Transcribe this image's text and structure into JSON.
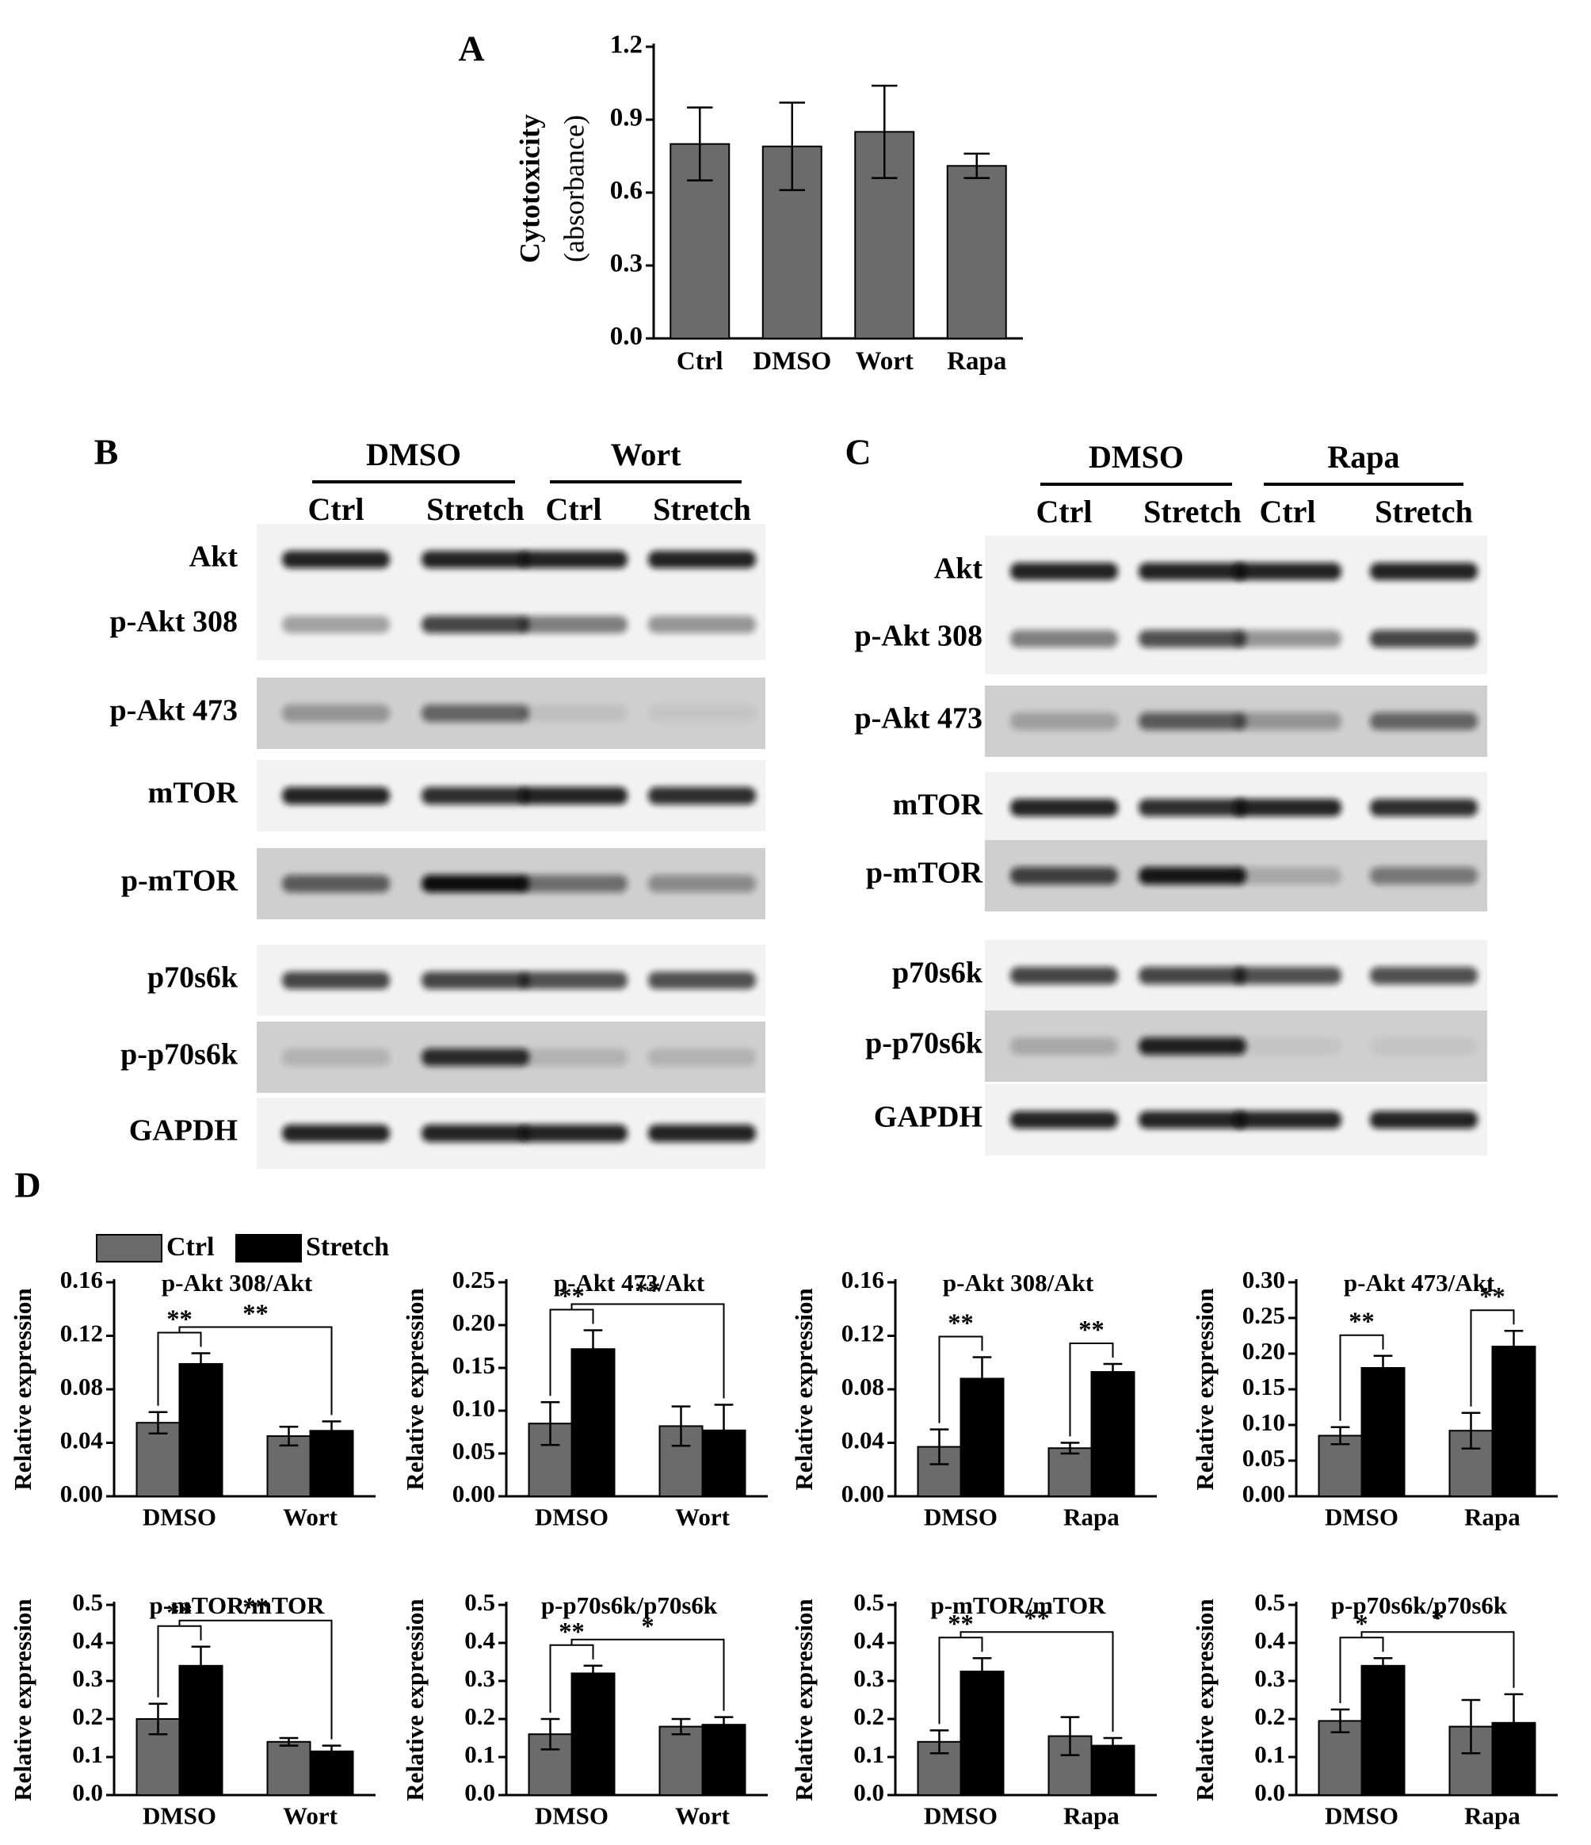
{
  "chart_data": [
    {
      "type": "bar",
      "panel_label": "A",
      "ylabel": [
        "Cytotoxicity",
        "(absorbance)"
      ],
      "categories": [
        "Ctrl",
        "DMSO",
        "Wort",
        "Rapa"
      ],
      "values": [
        0.8,
        0.79,
        0.85,
        0.71
      ],
      "errors": [
        0.15,
        0.18,
        0.19,
        0.05
      ],
      "color": "#6b6b6b",
      "ylim": [
        0,
        1.2
      ],
      "yticks": [
        {
          "value": 0,
          "label": "0.0"
        },
        0.3,
        0.6,
        0.9,
        1.2
      ]
    },
    {
      "type": "bar",
      "panel_label": "D",
      "title": "p-Akt 308/Akt",
      "ylabel": "Relative expression",
      "categories": [
        "DMSO",
        "Wort"
      ],
      "series": [
        {
          "name": "Ctrl",
          "color": "#6b6b6b",
          "values": [
            0.055,
            0.045
          ],
          "errors": [
            0.008,
            0.007
          ]
        },
        {
          "name": "Stretch",
          "color": "#000000",
          "values": [
            0.099,
            0.049
          ],
          "errors": [
            0.008,
            0.007
          ]
        }
      ],
      "ylim": [
        0,
        0.16
      ],
      "yticks": [
        {
          "value": 0,
          "label": "0.00"
        },
        0.04,
        0.08,
        0.12,
        0.16
      ],
      "within": [
        "**",
        null
      ],
      "between": "**"
    },
    {
      "type": "bar",
      "title": "p-Akt 473/Akt",
      "ylabel": "Relative expression",
      "categories": [
        "DMSO",
        "Wort"
      ],
      "series": [
        {
          "color": "#6b6b6b",
          "values": [
            0.085,
            0.082
          ],
          "errors": [
            0.025,
            0.023
          ]
        },
        {
          "color": "#000000",
          "values": [
            0.172,
            0.077
          ],
          "errors": [
            0.022,
            0.03
          ]
        }
      ],
      "ylim": [
        0,
        0.25
      ],
      "yticks": [
        {
          "value": 0,
          "label": "0.00"
        },
        0.05,
        {
          "value": 0.1,
          "label": "0.10"
        },
        0.15,
        {
          "value": 0.2,
          "label": "0.20"
        },
        0.25
      ],
      "within": [
        "**",
        null
      ],
      "between": "**"
    },
    {
      "type": "bar",
      "title": "p-Akt 308/Akt",
      "ylabel": "Relative expression",
      "categories": [
        "DMSO",
        "Rapa"
      ],
      "series": [
        {
          "color": "#6b6b6b",
          "values": [
            0.037,
            0.036
          ],
          "errors": [
            0.013,
            0.004
          ]
        },
        {
          "color": "#000000",
          "values": [
            0.088,
            0.093
          ],
          "errors": [
            0.016,
            0.006
          ]
        }
      ],
      "ylim": [
        0,
        0.16
      ],
      "yticks": [
        {
          "value": 0,
          "label": "0.00"
        },
        0.04,
        0.08,
        0.12,
        0.16
      ],
      "within": [
        "**",
        "**"
      ]
    },
    {
      "type": "bar",
      "title": "p-Akt 473/Akt",
      "ylabel": "Relative expression",
      "categories": [
        "DMSO",
        "Rapa"
      ],
      "series": [
        {
          "color": "#6b6b6b",
          "values": [
            0.085,
            0.092
          ],
          "errors": [
            0.012,
            0.025
          ]
        },
        {
          "color": "#000000",
          "values": [
            0.18,
            0.21
          ],
          "errors": [
            0.017,
            0.022
          ]
        }
      ],
      "ylim": [
        0,
        0.3
      ],
      "yticks": [
        {
          "value": 0,
          "label": "0.00"
        },
        0.05,
        {
          "value": 0.1,
          "label": "0.10"
        },
        0.15,
        {
          "value": 0.2,
          "label": "0.20"
        },
        0.25,
        {
          "value": 0.3,
          "label": "0.30"
        }
      ],
      "within": [
        "**",
        "**"
      ]
    },
    {
      "type": "bar",
      "title": "p-mTOR/mTOR",
      "ylabel": "Relative expression",
      "categories": [
        "DMSO",
        "Wort"
      ],
      "series": [
        {
          "color": "#6b6b6b",
          "values": [
            0.2,
            0.14
          ],
          "errors": [
            0.04,
            0.01
          ]
        },
        {
          "color": "#000000",
          "values": [
            0.34,
            0.115
          ],
          "errors": [
            0.05,
            0.015
          ]
        }
      ],
      "ylim": [
        0,
        0.5
      ],
      "yticks": [
        {
          "value": 0,
          "label": "0.0"
        },
        0.1,
        0.2,
        0.3,
        0.4,
        0.5
      ],
      "within": [
        "**",
        null
      ],
      "between": "**"
    },
    {
      "type": "bar",
      "title": "p-p70s6k/p70s6k",
      "ylabel": "Relative expression",
      "categories": [
        "DMSO",
        "Wort"
      ],
      "series": [
        {
          "color": "#6b6b6b",
          "values": [
            0.16,
            0.18
          ],
          "errors": [
            0.04,
            0.02
          ]
        },
        {
          "color": "#000000",
          "values": [
            0.32,
            0.185
          ],
          "errors": [
            0.02,
            0.02
          ]
        }
      ],
      "ylim": [
        0,
        0.5
      ],
      "yticks": [
        {
          "value": 0,
          "label": "0.0"
        },
        0.1,
        0.2,
        0.3,
        0.4,
        0.5
      ],
      "within": [
        "**",
        null
      ],
      "between": "*"
    },
    {
      "type": "bar",
      "title": "p-mTOR/mTOR",
      "ylabel": "Relative expression",
      "categories": [
        "DMSO",
        "Rapa"
      ],
      "series": [
        {
          "color": "#6b6b6b",
          "values": [
            0.14,
            0.155
          ],
          "errors": [
            0.03,
            0.05
          ]
        },
        {
          "color": "#000000",
          "values": [
            0.325,
            0.13
          ],
          "errors": [
            0.035,
            0.02
          ]
        }
      ],
      "ylim": [
        0,
        0.5
      ],
      "yticks": [
        {
          "value": 0,
          "label": "0.0"
        },
        0.1,
        0.2,
        0.3,
        0.4,
        0.5
      ],
      "within": [
        "**",
        null
      ],
      "between": "**"
    },
    {
      "type": "bar",
      "title": "p-p70s6k/p70s6k",
      "ylabel": "Relative expression",
      "categories": [
        "DMSO",
        "Rapa"
      ],
      "series": [
        {
          "color": "#6b6b6b",
          "values": [
            0.195,
            0.18
          ],
          "errors": [
            0.03,
            0.07
          ]
        },
        {
          "color": "#000000",
          "values": [
            0.34,
            0.19
          ],
          "errors": [
            0.02,
            0.075
          ]
        }
      ],
      "ylim": [
        0,
        0.5
      ],
      "yticks": [
        {
          "value": 0,
          "label": "0.0"
        },
        0.1,
        0.2,
        0.3,
        0.4,
        0.5
      ],
      "within": [
        "*",
        null
      ],
      "between": "*"
    }
  ],
  "blots": [
    {
      "label": "B",
      "groups": [
        "DMSO",
        "Wort"
      ],
      "lanes": [
        "Ctrl",
        "Stretch",
        "Ctrl",
        "Stretch"
      ],
      "rows": [
        "Akt",
        "p-Akt 308",
        "p-Akt 473",
        "mTOR",
        "p-mTOR",
        "p70s6k",
        "p-p70s6k",
        "GAPDH"
      ]
    },
    {
      "label": "C",
      "groups": [
        "DMSO",
        "Rapa"
      ],
      "lanes": [
        "Ctrl",
        "Stretch",
        "Ctrl",
        "Stretch"
      ],
      "rows": [
        "Akt",
        "p-Akt 308",
        "p-Akt 473",
        "mTOR",
        "p-mTOR",
        "p70s6k",
        "p-p70s6k",
        "GAPDH"
      ]
    }
  ]
}
